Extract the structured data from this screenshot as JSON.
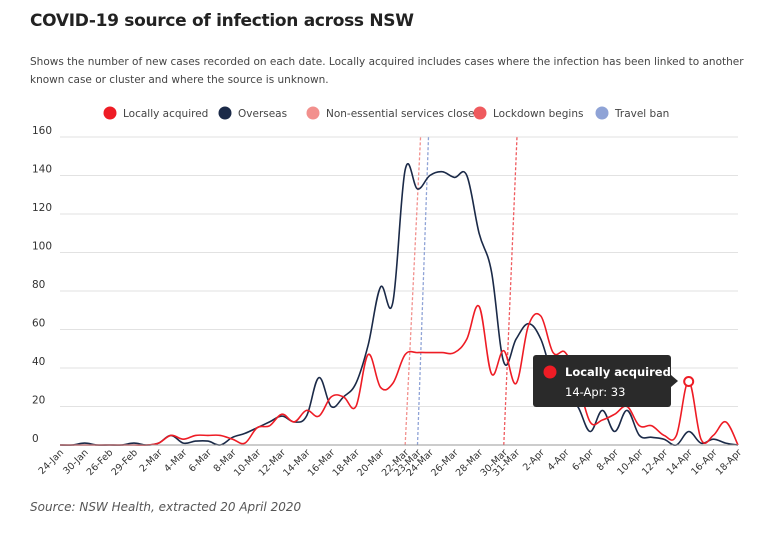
{
  "header": {
    "title": "COVID-19 source of infection across NSW",
    "subtitle": "Shows the number of new cases recorded on each date. Locally acquired includes cases where the infection has been linked to another known case or cluster and where the source is unknown."
  },
  "footer": {
    "source": "Source: NSW Health, extracted 20 April 2020"
  },
  "colors": {
    "locally": "#ee1c25",
    "overseas": "#1b2a48",
    "non_essential": "#f2908d",
    "lockdown": "#ef5a5e",
    "travel_ban": "#8fa3d6",
    "tooltip_bg": "#2a2a2a"
  },
  "tooltip": {
    "title": "Locally acquired",
    "body": "14-Apr: 33",
    "x": "14-Apr",
    "y": 33
  },
  "chart_data": {
    "type": "line",
    "title": "COVID-19 source of infection across NSW",
    "xlabel": "",
    "ylabel": "",
    "ylim": [
      0,
      160
    ],
    "yticks": [
      0,
      20,
      40,
      60,
      80,
      100,
      120,
      140,
      160
    ],
    "grid": true,
    "legend_placement": "top",
    "x": [
      "24-Jan",
      "27-Jan",
      "30-Jan",
      "2-Feb",
      "26-Feb",
      "27-Feb",
      "29-Feb",
      "1-Mar",
      "2-Mar",
      "3-Mar",
      "4-Mar",
      "5-Mar",
      "6-Mar",
      "7-Mar",
      "8-Mar",
      "9-Mar",
      "10-Mar",
      "11-Mar",
      "12-Mar",
      "13-Mar",
      "14-Mar",
      "15-Mar",
      "16-Mar",
      "17-Mar",
      "18-Mar",
      "19-Mar",
      "20-Mar",
      "21-Mar",
      "22-Mar",
      "23-Mar",
      "24-Mar",
      "25-Mar",
      "26-Mar",
      "27-Mar",
      "28-Mar",
      "29-Mar",
      "30-Mar",
      "31-Mar",
      "1-Apr",
      "2-Apr",
      "3-Apr",
      "4-Apr",
      "5-Apr",
      "6-Apr",
      "7-Apr",
      "8-Apr",
      "9-Apr",
      "10-Apr",
      "11-Apr",
      "12-Apr",
      "13-Apr",
      "14-Apr",
      "15-Apr",
      "16-Apr",
      "17-Apr",
      "18-Apr"
    ],
    "xtick_labels": [
      "24-Jan",
      "30-Jan",
      "26-Feb",
      "29-Feb",
      "2-Mar",
      "4-Mar",
      "6-Mar",
      "8-Mar",
      "10-Mar",
      "12-Mar",
      "14-Mar",
      "16-Mar",
      "18-Mar",
      "20-Mar",
      "22-Mar",
      "23-Mar",
      "24-Mar",
      "26-Mar",
      "28-Mar",
      "30-Mar",
      "31-Mar",
      "2-Apr",
      "4-Apr",
      "6-Apr",
      "8-Apr",
      "10-Apr",
      "12-Apr",
      "14-Apr",
      "16-Apr",
      "18-Apr"
    ],
    "series": [
      {
        "name": "Locally acquired",
        "values": [
          0,
          0,
          0,
          0,
          0,
          0,
          0,
          0,
          1,
          5,
          3,
          5,
          5,
          5,
          3,
          1,
          9,
          10,
          16,
          12,
          18,
          15,
          25,
          25,
          20,
          47,
          30,
          32,
          47,
          48,
          48,
          48,
          48,
          55,
          72,
          37,
          49,
          32,
          62,
          67,
          48,
          48,
          33,
          12,
          13,
          16,
          20,
          10,
          10,
          5,
          5,
          33,
          3,
          5,
          12,
          0
        ]
      },
      {
        "name": "Overseas",
        "values": [
          0,
          0,
          1,
          0,
          0,
          0,
          1,
          0,
          1,
          5,
          1,
          2,
          2,
          0,
          4,
          6,
          9,
          12,
          15,
          12,
          15,
          35,
          20,
          25,
          32,
          52,
          82,
          74,
          143,
          133,
          140,
          142,
          139,
          140,
          110,
          90,
          43,
          55,
          63,
          55,
          35,
          25,
          20,
          7,
          18,
          7,
          18,
          5,
          4,
          3,
          0,
          7,
          1,
          3,
          1,
          0
        ]
      }
    ],
    "events": [
      {
        "name": "Non-essential services closed",
        "x": "22-Mar"
      },
      {
        "name": "Travel ban",
        "x": "23-Mar"
      },
      {
        "name": "Lockdown begins",
        "x": "30-Mar"
      }
    ],
    "legend": [
      "Locally acquired",
      "Overseas",
      "Non-essential services closed",
      "Lockdown begins",
      "Travel ban"
    ]
  }
}
